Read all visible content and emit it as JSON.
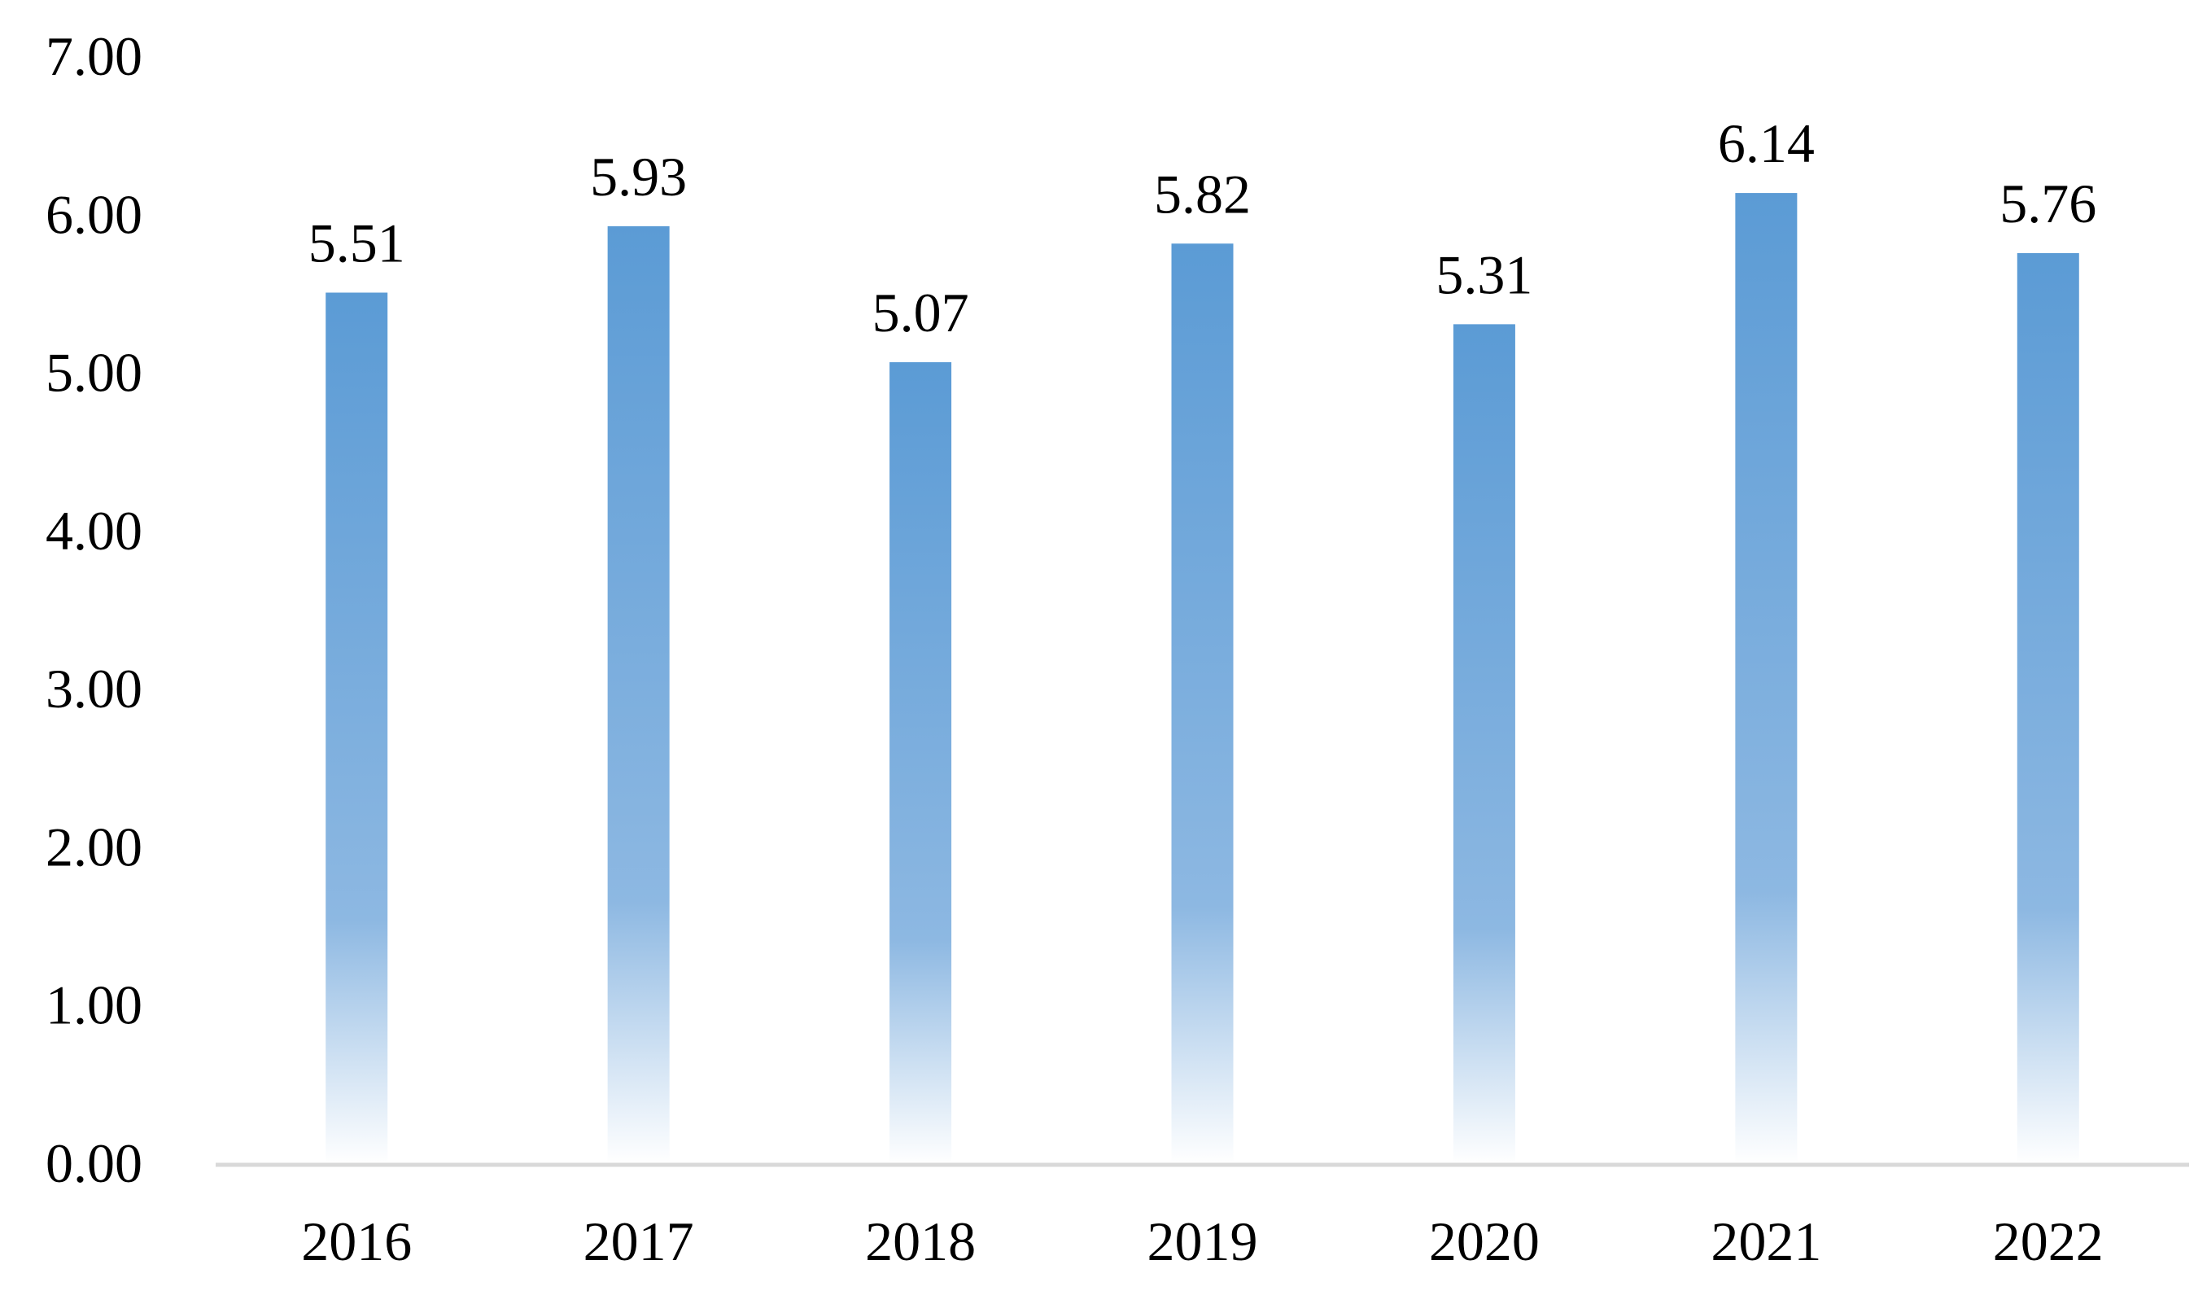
{
  "chart_data": {
    "type": "bar",
    "categories": [
      "2016",
      "2017",
      "2018",
      "2019",
      "2020",
      "2021",
      "2022"
    ],
    "values": [
      5.51,
      5.93,
      5.07,
      5.82,
      5.31,
      6.14,
      5.76
    ],
    "data_labels": [
      "5.51",
      "5.93",
      "5.07",
      "5.82",
      "5.31",
      "6.14",
      "5.76"
    ],
    "y_ticks": [
      "0.00",
      "1.00",
      "2.00",
      "3.00",
      "4.00",
      "5.00",
      "6.00",
      "7.00"
    ],
    "ylim": [
      0,
      7
    ],
    "grid": false,
    "legend": "none",
    "title": "",
    "xlabel": "",
    "ylabel": ""
  },
  "colors": {
    "bar_top": "#5b9bd5",
    "bar_mid": "#8db8e2",
    "bar_bottom": "#ffffff",
    "axis": "#d9d9d9"
  }
}
